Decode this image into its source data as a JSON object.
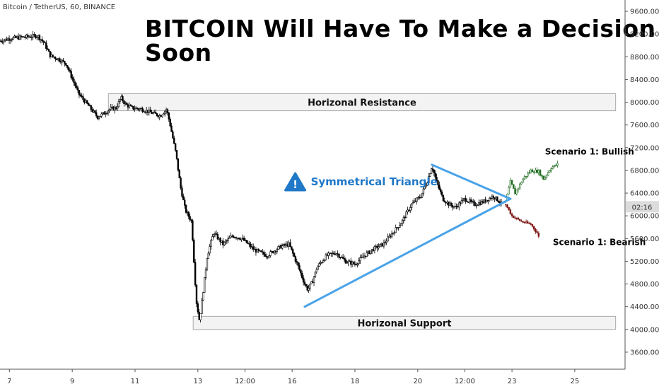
{
  "symbol_line": "Bitcoin / TetherUS, 60, BINANCE",
  "title": "BITCOIN Will Have To Make a Decision Soon",
  "countdown": "02:16",
  "colors": {
    "candle": "#000000",
    "triangle": "#4aa3e8",
    "bull": "#1e6b1e",
    "bear": "#7a1010",
    "zone_fill": "#f2f2f2",
    "zone_border": "#999999",
    "triangle_label": "#1f78c8",
    "countdown_bg": "#dcdcdc"
  },
  "chart_data": {
    "type": "candlestick",
    "ylim": [
      3300,
      9800
    ],
    "y_ticks": [
      {
        "value": 9600,
        "label": "9600.00"
      },
      {
        "value": 9200,
        "label": "9200.00"
      },
      {
        "value": 8800,
        "label": "8800.00"
      },
      {
        "value": 8400,
        "label": "8400.00"
      },
      {
        "value": 8000,
        "label": "8000.00"
      },
      {
        "value": 7600,
        "label": "7600.00"
      },
      {
        "value": 7200,
        "label": "7200.00"
      },
      {
        "value": 6800,
        "label": "6800.00"
      },
      {
        "value": 6400,
        "label": "6400.00"
      },
      {
        "value": 6000,
        "label": "6000.00"
      },
      {
        "value": 5600,
        "label": "5600.00"
      },
      {
        "value": 5200,
        "label": "5200.00"
      },
      {
        "value": 4800,
        "label": "4800.00"
      },
      {
        "value": 4400,
        "label": "4400.00"
      },
      {
        "value": 4000,
        "label": "4000.00"
      },
      {
        "value": 3600,
        "label": "3600.00"
      }
    ],
    "xlim": [
      6.7,
      26.6
    ],
    "x_ticks": [
      {
        "value": 7,
        "label": "7"
      },
      {
        "value": 9,
        "label": "9"
      },
      {
        "value": 11,
        "label": "11"
      },
      {
        "value": 13,
        "label": "13"
      },
      {
        "value": 14.5,
        "label": "12:00"
      },
      {
        "value": 16,
        "label": "16"
      },
      {
        "value": 18,
        "label": "18"
      },
      {
        "value": 20,
        "label": "20"
      },
      {
        "value": 21.5,
        "label": "12:00"
      },
      {
        "value": 23,
        "label": "23"
      },
      {
        "value": 25,
        "label": "25"
      }
    ],
    "price_path": [
      [
        6.7,
        9080
      ],
      [
        7.0,
        9120
      ],
      [
        7.5,
        9150
      ],
      [
        7.9,
        9170
      ],
      [
        8.1,
        9050
      ],
      [
        8.3,
        8820
      ],
      [
        8.6,
        8750
      ],
      [
        8.8,
        8680
      ],
      [
        9.0,
        8420
      ],
      [
        9.2,
        8150
      ],
      [
        9.5,
        7950
      ],
      [
        9.8,
        7740
      ],
      [
        10.0,
        7800
      ],
      [
        10.2,
        7880
      ],
      [
        10.4,
        7900
      ],
      [
        10.55,
        8080
      ],
      [
        10.7,
        7960
      ],
      [
        10.9,
        7900
      ],
      [
        11.2,
        7880
      ],
      [
        11.5,
        7820
      ],
      [
        11.8,
        7760
      ],
      [
        12.0,
        7880
      ],
      [
        12.1,
        7650
      ],
      [
        12.3,
        7100
      ],
      [
        12.45,
        6500
      ],
      [
        12.6,
        6100
      ],
      [
        12.8,
        5900
      ],
      [
        12.95,
        4500
      ],
      [
        13.05,
        4150
      ],
      [
        13.15,
        4600
      ],
      [
        13.3,
        5300
      ],
      [
        13.5,
        5700
      ],
      [
        13.8,
        5500
      ],
      [
        14.1,
        5650
      ],
      [
        14.4,
        5600
      ],
      [
        14.8,
        5400
      ],
      [
        15.2,
        5300
      ],
      [
        15.6,
        5450
      ],
      [
        15.9,
        5500
      ],
      [
        16.05,
        5300
      ],
      [
        16.2,
        5100
      ],
      [
        16.4,
        4800
      ],
      [
        16.5,
        4700
      ],
      [
        16.65,
        4850
      ],
      [
        16.8,
        5100
      ],
      [
        17.1,
        5300
      ],
      [
        17.4,
        5350
      ],
      [
        17.7,
        5200
      ],
      [
        18.0,
        5150
      ],
      [
        18.3,
        5300
      ],
      [
        18.6,
        5420
      ],
      [
        18.9,
        5500
      ],
      [
        19.2,
        5700
      ],
      [
        19.5,
        5900
      ],
      [
        19.8,
        6200
      ],
      [
        20.1,
        6350
      ],
      [
        20.3,
        6600
      ],
      [
        20.45,
        6880
      ],
      [
        20.6,
        6600
      ],
      [
        20.8,
        6300
      ],
      [
        21.0,
        6200
      ],
      [
        21.2,
        6150
      ],
      [
        21.5,
        6300
      ],
      [
        21.8,
        6200
      ],
      [
        22.1,
        6250
      ],
      [
        22.4,
        6350
      ],
      [
        22.7,
        6200
      ]
    ],
    "bull_path": [
      [
        22.8,
        6250
      ],
      [
        22.95,
        6600
      ],
      [
        23.1,
        6400
      ],
      [
        23.35,
        6650
      ],
      [
        23.6,
        6800
      ],
      [
        23.85,
        6780
      ],
      [
        24.0,
        6650
      ],
      [
        24.25,
        6850
      ],
      [
        24.5,
        6920
      ]
    ],
    "bear_path": [
      [
        22.8,
        6200
      ],
      [
        23.0,
        6000
      ],
      [
        23.3,
        5900
      ],
      [
        23.6,
        5850
      ],
      [
        23.8,
        5700
      ],
      [
        23.9,
        5560
      ]
    ],
    "triangle": {
      "upper": [
        [
          20.45,
          6900
        ],
        [
          22.95,
          6300
        ]
      ],
      "lower": [
        [
          16.4,
          4400
        ],
        [
          22.95,
          6300
        ]
      ]
    },
    "zones": [
      {
        "label": "Horizonal Resistance",
        "x0": 10.15,
        "x1": 26.3,
        "y0": 7850,
        "y1": 8150
      },
      {
        "label": "Horizonal Support",
        "x0": 12.85,
        "x1": 26.3,
        "y0": 4000,
        "y1": 4230
      }
    ],
    "annotations": [
      {
        "label": "Symmetrical Triangle",
        "x": 16.1,
        "y": 6600,
        "color": "triangle_label",
        "size": 15,
        "icon": "warning-icon"
      },
      {
        "label": "Scenario 1: Bullish",
        "x": 24.05,
        "y": 7140,
        "color": "#000000",
        "size": 12
      },
      {
        "label": "Scenario 1: Bearish",
        "x": 24.3,
        "y": 5550,
        "color": "#000000",
        "size": 12
      }
    ],
    "countdown_price": 6160
  }
}
